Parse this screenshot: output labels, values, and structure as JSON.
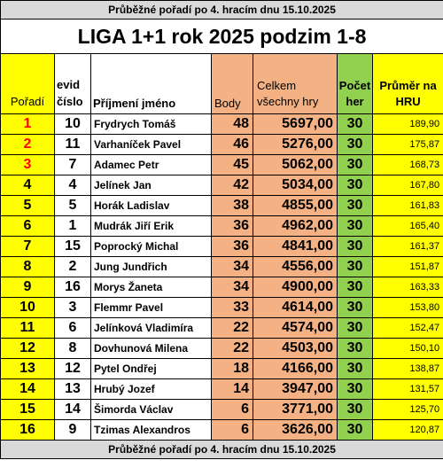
{
  "top_banner": "Průběžné pořadí po 4. hracím dnu 15.10.2025",
  "title": "LIGA 1+1 rok 2025 podzim 1-8",
  "headers": {
    "poradi": "Pořadí",
    "evid_line1": "evid",
    "evid_line2": "číslo",
    "name": "Příjmení jméno",
    "body": "Body",
    "celkem_line1": "Celkem",
    "celkem_line2": "všechny hry",
    "pocet_line1": "Počet",
    "pocet_line2": "her",
    "prumer_line1": "Průměr na",
    "prumer_line2": "HRU"
  },
  "colors": {
    "yellow": "#ffff00",
    "orange": "#f4b183",
    "green": "#92d050",
    "banner_gray": "#d9d9d9",
    "top3_red": "#ff0000"
  },
  "rows": [
    {
      "rank": "1",
      "evid": "10",
      "name": "Frydrych Tomáš",
      "body": "48",
      "celkem": "5697,00",
      "pocet": "30",
      "prumer": "189,90"
    },
    {
      "rank": "2",
      "evid": "11",
      "name": "Varhaníček Pavel",
      "body": "46",
      "celkem": "5276,00",
      "pocet": "30",
      "prumer": "175,87"
    },
    {
      "rank": "3",
      "evid": "7",
      "name": "Adamec Petr",
      "body": "45",
      "celkem": "5062,00",
      "pocet": "30",
      "prumer": "168,73"
    },
    {
      "rank": "4",
      "evid": "4",
      "name": "Jelínek Jan",
      "body": "42",
      "celkem": "5034,00",
      "pocet": "30",
      "prumer": "167,80"
    },
    {
      "rank": "5",
      "evid": "5",
      "name": "Horák Ladislav",
      "body": "38",
      "celkem": "4855,00",
      "pocet": "30",
      "prumer": "161,83"
    },
    {
      "rank": "6",
      "evid": "1",
      "name": "Mudrák Jiří Erik",
      "body": "36",
      "celkem": "4962,00",
      "pocet": "30",
      "prumer": "165,40"
    },
    {
      "rank": "7",
      "evid": "15",
      "name": "Poprocký Michal",
      "body": "36",
      "celkem": "4841,00",
      "pocet": "30",
      "prumer": "161,37"
    },
    {
      "rank": "8",
      "evid": "2",
      "name": "Jung Jundřich",
      "body": "34",
      "celkem": "4556,00",
      "pocet": "30",
      "prumer": "151,87"
    },
    {
      "rank": "9",
      "evid": "16",
      "name": "Morys Žaneta",
      "body": "34",
      "celkem": "4900,00",
      "pocet": "30",
      "prumer": "163,33"
    },
    {
      "rank": "10",
      "evid": "3",
      "name": "Flemmr Pavel",
      "body": "33",
      "celkem": "4614,00",
      "pocet": "30",
      "prumer": "153,80"
    },
    {
      "rank": "11",
      "evid": "6",
      "name": "Jelínková Vladimíra",
      "body": "22",
      "celkem": "4574,00",
      "pocet": "30",
      "prumer": "152,47"
    },
    {
      "rank": "12",
      "evid": "8",
      "name": "Dovhunová Milena",
      "body": "22",
      "celkem": "4503,00",
      "pocet": "30",
      "prumer": "150,10"
    },
    {
      "rank": "13",
      "evid": "12",
      "name": "Pytel Ondřej",
      "body": "18",
      "celkem": "4166,00",
      "pocet": "30",
      "prumer": "138,87"
    },
    {
      "rank": "14",
      "evid": "13",
      "name": "Hrubý Jozef",
      "body": "14",
      "celkem": "3947,00",
      "pocet": "30",
      "prumer": "131,57"
    },
    {
      "rank": "15",
      "evid": "14",
      "name": "Šimorda Václav",
      "body": "6",
      "celkem": "3771,00",
      "pocet": "30",
      "prumer": "125,70"
    },
    {
      "rank": "16",
      "evid": "9",
      "name": "Tzimas Alexandros",
      "body": "6",
      "celkem": "3626,00",
      "pocet": "30",
      "prumer": "120,87"
    }
  ],
  "bottom_banner": "Průběžné pořadí po 4. hracím dnu 15.10.2025"
}
